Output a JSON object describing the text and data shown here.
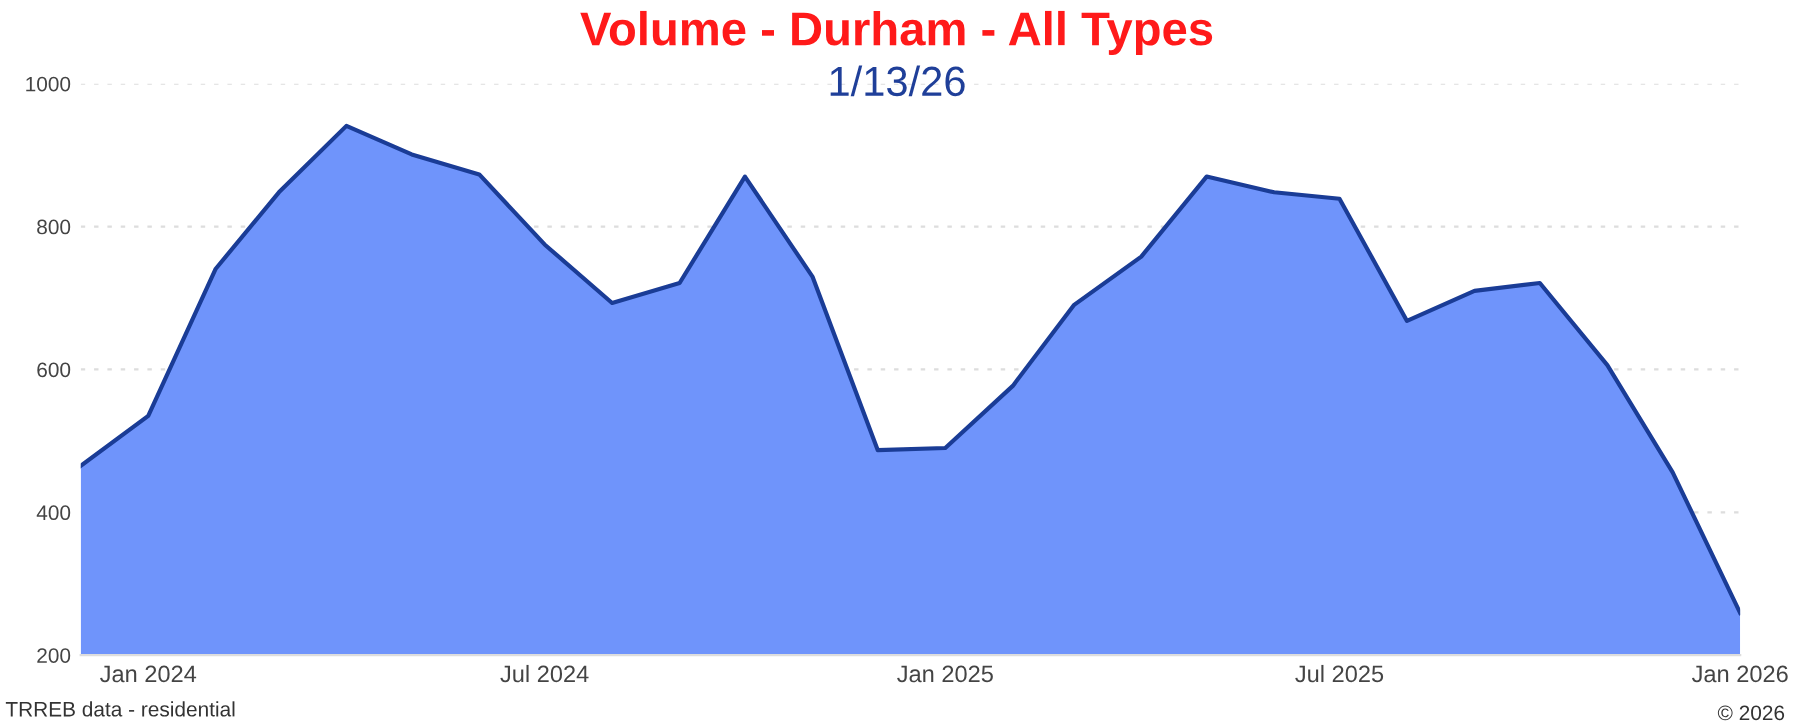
{
  "chart_data": {
    "type": "area",
    "title": "Volume - Durham - All Types",
    "subtitle": "1/13/26",
    "x": [
      "2023-12",
      "2024-01",
      "2024-02",
      "2024-03",
      "2024-04",
      "2024-05",
      "2024-06",
      "2024-07",
      "2024-08",
      "2024-09",
      "2024-10",
      "2024-11",
      "2024-12",
      "2025-01",
      "2025-02",
      "2025-03",
      "2025-04",
      "2025-05",
      "2025-06",
      "2025-07",
      "2025-08",
      "2025-09",
      "2025-10",
      "2025-11",
      "2025-12",
      "2026-01"
    ],
    "series": [
      {
        "color": "#1a3c96",
        "values": [
          465,
          535,
          741,
          848,
          941,
          901,
          873,
          775,
          693,
          721,
          870,
          730,
          487,
          490,
          577,
          690,
          758,
          870,
          848,
          839,
          668,
          710,
          721,
          606,
          456,
          259
        ]
      }
    ],
    "xlim": [
      "2023-12",
      "2026-01"
    ],
    "xticks": [
      {
        "value": "2024-01",
        "label": "Jan 2024"
      },
      {
        "value": "2024-07",
        "label": "Jul 2024"
      },
      {
        "value": "2025-01",
        "label": "Jan 2025"
      },
      {
        "value": "2025-07",
        "label": "Jul 2025"
      },
      {
        "value": "2026-01",
        "label": "Jan 2026"
      }
    ],
    "ylim": [
      200,
      1000
    ],
    "yticks": [
      200,
      400,
      600,
      800,
      1000
    ],
    "grid": "y",
    "annotations": [
      "TRREB data - residential",
      "© 2026"
    ]
  }
}
